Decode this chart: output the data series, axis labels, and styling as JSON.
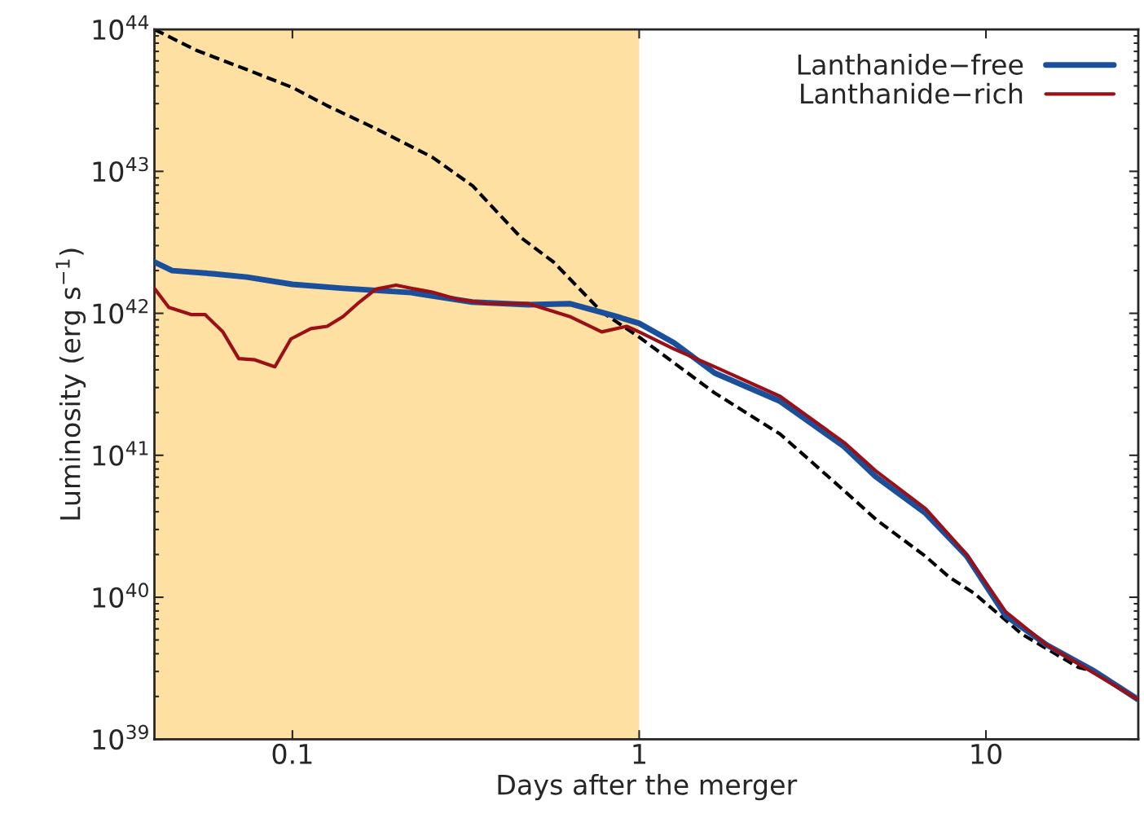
{
  "chart_data": {
    "type": "line",
    "xlabel": "Days after the merger",
    "ylabel": "Luminosity (erg s$^{−1}$)",
    "log": "xy",
    "xlim": [
      0.04,
      27.5
    ],
    "ylim": [
      1e+39,
      1e+44
    ],
    "xticks": [
      0.1,
      1,
      10
    ],
    "yticks": [
      {
        "value": 1e+39,
        "label": "10$^{39}$"
      },
      {
        "value": 1e+40,
        "label": "10$^{40}$"
      },
      {
        "value": 1e+41,
        "label": "10$^{41}$"
      },
      {
        "value": 1e+42,
        "label": "10$^{42}$"
      },
      {
        "value": 1e+43,
        "label": "10$^{43}$"
      },
      {
        "value": 1e+44,
        "label": "10$^{44}$"
      }
    ],
    "grid": false,
    "legend": "top right",
    "bands": [
      {
        "axis": "x",
        "from": 0.04,
        "to": 1,
        "color": "#fde0a2"
      }
    ],
    "series": [
      {
        "name": "Lanthanide−free",
        "color": "#1a4f9c",
        "line_style": "solid",
        "x": [
          0.04,
          0.045,
          0.059,
          0.074,
          0.1,
          0.14,
          0.22,
          0.33,
          0.48,
          0.63,
          0.86,
          1,
          1.26,
          1.65,
          2.55,
          3.9,
          4.8,
          6.7,
          8.8,
          11.4,
          15,
          20.6,
          27.5
        ],
        "values": [
          2.3e+42,
          2e+42,
          1.9e+42,
          1.8e+42,
          1.6e+42,
          1.5e+42,
          1.4e+42,
          1.2e+42,
          1.15e+42,
          1.17e+42,
          9.5e+41,
          8.5e+41,
          6.2e+41,
          3.8e+41,
          2.4e+41,
          1.15e+41,
          7.1e+40,
          3.9e+40,
          1.95e+40,
          7.4e+39,
          4.6e+39,
          3e+39,
          1.9e+39
        ]
      },
      {
        "name": "Lanthanide−rich",
        "color": "#9b0f16",
        "line_style": "solid",
        "x": [
          0.04,
          0.044,
          0.051,
          0.056,
          0.063,
          0.07,
          0.078,
          0.089,
          0.099,
          0.113,
          0.126,
          0.14,
          0.156,
          0.174,
          0.199,
          0.227,
          0.253,
          0.297,
          0.367,
          0.48,
          0.63,
          0.78,
          0.92,
          1,
          1.26,
          1.65,
          2.55,
          3.9,
          4.8,
          6.7,
          8.8,
          11.4,
          15,
          27.5
        ],
        "values": [
          1.5e+42,
          1.1e+42,
          9.8e+41,
          9.8e+41,
          7.4e+41,
          4.8e+41,
          4.7e+41,
          4.2e+41,
          6.6e+41,
          7.8e+41,
          8.1e+41,
          9.5e+41,
          1.2e+42,
          1.48e+42,
          1.58e+42,
          1.48e+42,
          1.41e+42,
          1.26e+42,
          1.17e+42,
          1.17e+42,
          9.5e+41,
          7.4e+41,
          8.1e+41,
          7.4e+41,
          5.6e+41,
          4.2e+41,
          2.6e+41,
          1.23e+41,
          7.8e+40,
          4.2e+40,
          2e+40,
          7.9e+39,
          4.6e+39,
          1.9e+39
        ]
      },
      {
        "color": "#000000",
        "line_style": "dashed",
        "x": [
          0.04,
          0.053,
          0.074,
          0.1,
          0.126,
          0.174,
          0.253,
          0.331,
          0.457,
          0.566,
          0.781,
          1,
          1.65,
          2.55,
          3.91,
          4.84,
          6.68,
          7.85,
          9.23,
          12.7,
          18.5,
          20.6,
          27.5
        ],
        "values": [
          1e+44,
          7.1e+43,
          5.2e+43,
          3.9e+43,
          2.9e+43,
          2e+43,
          1.26e+43,
          7.9e+42,
          3.4e+42,
          2.3e+42,
          1.02e+42,
          6.8e+41,
          2.75e+41,
          1.41e+41,
          5.6e+40,
          3.5e+40,
          1.95e+40,
          1.38e+40,
          1.07e+40,
          5.5e+39,
          3.2e+39,
          3e+39,
          1.9e+39
        ]
      }
    ]
  }
}
